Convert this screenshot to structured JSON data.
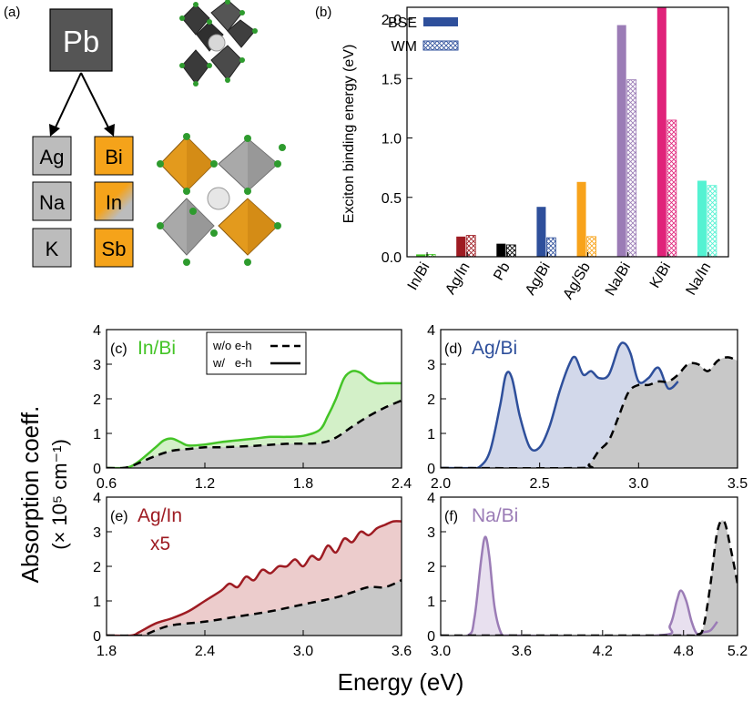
{
  "panel_a": {
    "label": "(a)",
    "root": "Pb",
    "left_column": [
      "Ag",
      "Na",
      "K"
    ],
    "right_column": [
      "Bi",
      "In",
      "Sb"
    ],
    "colors": {
      "root": "#555555",
      "left": "#bcbcbc",
      "right": "#f5a31a",
      "octa_gray": "#8e8e8e",
      "octa_dark": "#3a3a3a",
      "octa_orange": "#e39a1d",
      "halide": "#2e9b2e"
    }
  },
  "chart_data": [
    {
      "panel": "(b)",
      "type": "bar",
      "title": "",
      "xlabel": "",
      "ylabel": "Exciton binding energy (eV)",
      "ylim": [
        0,
        2.1
      ],
      "yticks": [
        "0.0",
        "0.5",
        "1.0",
        "1.5",
        "2.0"
      ],
      "categories": [
        "In/Bi",
        "Ag/In",
        "Pb",
        "Ag/Bi",
        "Ag/Sb",
        "Na/Bi",
        "K/Bi",
        "Na/In"
      ],
      "colors": [
        "#44c427",
        "#9e1b22",
        "#000000",
        "#2e4f9b",
        "#f8a31b",
        "#9b7cb6",
        "#e0237a",
        "#54f2d2"
      ],
      "series": [
        {
          "name": "BSE",
          "style": "solid",
          "values": [
            0.02,
            0.17,
            0.11,
            0.42,
            0.63,
            1.95,
            2.1,
            0.64
          ]
        },
        {
          "name": "WM",
          "style": "hatched",
          "values": [
            0.02,
            0.18,
            0.1,
            0.16,
            0.17,
            1.49,
            1.15,
            0.6
          ]
        }
      ],
      "legend": {
        "position": "top-left",
        "entries": [
          "BSE",
          "WM"
        ],
        "colors": [
          "#2e4f9b",
          "#2e4f9b"
        ]
      }
    },
    {
      "panel": "(c)",
      "type": "area",
      "label": "In/Bi",
      "color": "#44c427",
      "fill": "#d3f0c8",
      "xlim": [
        0.6,
        2.4
      ],
      "ylim": [
        0,
        4
      ],
      "xticks": [
        "0.6",
        "1.2",
        "1.8",
        "2.4"
      ],
      "yticks": [
        "0",
        "1",
        "2",
        "3",
        "4"
      ],
      "legend": {
        "position": "top-right",
        "entries": [
          "w/o e-h",
          "w/   e-h"
        ]
      },
      "series": [
        {
          "name": "w/o e-h",
          "style": "dashed",
          "x": [
            0.6,
            0.7,
            0.75,
            0.8,
            0.9,
            1.0,
            1.1,
            1.2,
            1.3,
            1.5,
            1.7,
            1.9,
            2.0,
            2.1,
            2.2,
            2.3,
            2.4
          ],
          "y": [
            0,
            0,
            0.05,
            0.15,
            0.35,
            0.5,
            0.55,
            0.6,
            0.6,
            0.64,
            0.7,
            0.72,
            0.88,
            1.2,
            1.5,
            1.75,
            1.95
          ]
        },
        {
          "name": "w/   e-h",
          "style": "solid",
          "x": [
            0.6,
            0.7,
            0.75,
            0.8,
            0.9,
            0.95,
            1.0,
            1.05,
            1.1,
            1.2,
            1.3,
            1.4,
            1.5,
            1.6,
            1.7,
            1.8,
            1.9,
            1.95,
            2.0,
            2.05,
            2.1,
            2.15,
            2.2,
            2.25,
            2.3,
            2.4
          ],
          "y": [
            0,
            0,
            0.05,
            0.2,
            0.6,
            0.8,
            0.85,
            0.75,
            0.65,
            0.68,
            0.75,
            0.8,
            0.85,
            0.9,
            0.9,
            0.93,
            1.1,
            1.5,
            2.0,
            2.6,
            2.8,
            2.75,
            2.55,
            2.45,
            2.45,
            2.45
          ]
        }
      ]
    },
    {
      "panel": "(d)",
      "type": "area",
      "label": "Ag/Bi",
      "color": "#2e4f9b",
      "fill": "#d2d8ea",
      "xlim": [
        2.0,
        3.5
      ],
      "ylim": [
        0,
        4
      ],
      "xticks": [
        "2.0",
        "2.5",
        "3.0",
        "3.5"
      ],
      "yticks": [
        "0",
        "1",
        "2",
        "3",
        "4"
      ],
      "series": [
        {
          "name": "w/o e-h",
          "style": "dashed",
          "x": [
            2.0,
            2.7,
            2.75,
            2.8,
            2.85,
            2.9,
            2.95,
            3.0,
            3.05,
            3.1,
            3.15,
            3.2,
            3.25,
            3.3,
            3.35,
            3.4,
            3.45,
            3.5
          ],
          "y": [
            0,
            0,
            0.1,
            0.5,
            0.8,
            1.5,
            2.2,
            2.4,
            2.4,
            2.5,
            2.5,
            2.7,
            3.0,
            3.0,
            2.8,
            3.1,
            3.2,
            3.1
          ]
        },
        {
          "name": "w/   e-h",
          "style": "solid",
          "x": [
            2.0,
            2.15,
            2.2,
            2.25,
            2.3,
            2.33,
            2.36,
            2.4,
            2.45,
            2.5,
            2.55,
            2.6,
            2.65,
            2.68,
            2.72,
            2.76,
            2.8,
            2.85,
            2.9,
            2.93,
            2.96,
            3.0,
            3.05,
            3.1,
            3.15,
            3.2
          ],
          "y": [
            0,
            0,
            0.05,
            0.5,
            1.8,
            2.7,
            2.6,
            1.5,
            0.6,
            0.6,
            1.2,
            2.2,
            3.0,
            3.2,
            2.7,
            2.8,
            2.6,
            2.7,
            3.5,
            3.6,
            3.3,
            2.5,
            2.6,
            2.9,
            2.3,
            2.5
          ]
        }
      ]
    },
    {
      "panel": "(e)",
      "type": "area",
      "label": "Ag/In",
      "annotation": "x5",
      "color": "#9e1b22",
      "fill": "#eccccc",
      "xlim": [
        1.8,
        3.6
      ],
      "ylim": [
        0,
        4
      ],
      "xticks": [
        "1.8",
        "2.4",
        "3.0",
        "3.6"
      ],
      "yticks": [
        "0",
        "1",
        "2",
        "3",
        "4"
      ],
      "series": [
        {
          "name": "w/o e-h",
          "style": "dashed",
          "x": [
            1.8,
            2.0,
            2.05,
            2.1,
            2.2,
            2.4,
            2.6,
            2.8,
            3.0,
            3.2,
            3.3,
            3.4,
            3.5,
            3.6
          ],
          "y": [
            0,
            0,
            0.05,
            0.15,
            0.3,
            0.4,
            0.55,
            0.7,
            0.9,
            1.1,
            1.25,
            1.4,
            1.4,
            1.6
          ]
        },
        {
          "name": "w/   e-h",
          "style": "solid",
          "x": [
            1.8,
            1.95,
            2.0,
            2.1,
            2.2,
            2.3,
            2.4,
            2.5,
            2.55,
            2.6,
            2.65,
            2.7,
            2.75,
            2.8,
            2.85,
            2.9,
            2.95,
            3.0,
            3.05,
            3.1,
            3.15,
            3.2,
            3.25,
            3.3,
            3.35,
            3.4,
            3.45,
            3.5,
            3.55,
            3.6
          ],
          "y": [
            0,
            0,
            0.1,
            0.35,
            0.5,
            0.7,
            1.0,
            1.3,
            1.5,
            1.4,
            1.7,
            1.6,
            1.9,
            1.8,
            2.0,
            2.0,
            2.2,
            2.0,
            2.3,
            2.2,
            2.6,
            2.4,
            2.8,
            2.7,
            3.0,
            2.9,
            3.1,
            3.2,
            3.3,
            3.3
          ]
        }
      ]
    },
    {
      "panel": "(f)",
      "type": "area",
      "label": "Na/Bi",
      "color": "#9b7cb6",
      "fill": "#e8e0ef",
      "xlim": [
        3.0,
        5.2
      ],
      "ylim": [
        0,
        4
      ],
      "xticks": [
        "3.0",
        "3.6",
        "4.2",
        "4.8",
        "5.2"
      ],
      "yticks": [
        "0",
        "1",
        "2",
        "3",
        "4"
      ],
      "series": [
        {
          "name": "w/o e-h",
          "style": "dashed",
          "x": [
            3.0,
            4.7,
            4.9,
            4.95,
            5.0,
            5.05,
            5.1,
            5.15,
            5.2
          ],
          "y": [
            0,
            0,
            0.02,
            0.3,
            1.5,
            3.0,
            3.3,
            2.5,
            1.5
          ]
        },
        {
          "name": "w/   e-h",
          "style": "solid",
          "x": [
            3.0,
            3.2,
            3.25,
            3.3,
            3.33,
            3.36,
            3.4,
            3.45,
            3.5,
            4.6,
            4.7,
            4.75,
            4.78,
            4.82,
            4.86,
            4.9,
            4.95,
            5.0,
            5.05
          ],
          "y": [
            0,
            0,
            0.5,
            2.2,
            2.85,
            2.3,
            0.8,
            0.05,
            0,
            0,
            0.3,
            1.0,
            1.3,
            1.0,
            0.4,
            0.05,
            0.1,
            0.15,
            0.4
          ]
        }
      ]
    }
  ],
  "shared": {
    "ylabel_line1": "Absorption coeff.",
    "ylabel_line2": "(× 10⁵ cm⁻¹)",
    "xlabel": "Energy (eV)",
    "baseline_fill": "#c8c8c8"
  }
}
